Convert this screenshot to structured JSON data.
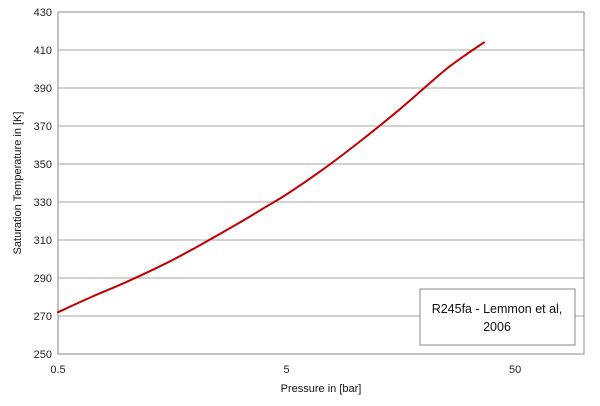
{
  "chart_data": {
    "type": "line",
    "title": "",
    "xlabel": "Pressure in [bar]",
    "ylabel": "Saturation Temperature in [K]",
    "x_scale": "log",
    "xlim": [
      0.5,
      100
    ],
    "ylim": [
      250,
      430
    ],
    "x_ticks": [
      0.5,
      5,
      50
    ],
    "x_tick_labels": [
      "0.5",
      "5",
      "50"
    ],
    "y_ticks": [
      250,
      270,
      290,
      310,
      330,
      350,
      370,
      390,
      410,
      430
    ],
    "y_tick_labels": [
      "250",
      "270",
      "290",
      "310",
      "330",
      "350",
      "370",
      "390",
      "410",
      "430"
    ],
    "grid": "horizontal",
    "legend_position": "bottom-right",
    "legend_lines": [
      "R245fa - Lemmon et al,",
      "2006"
    ],
    "series": [
      {
        "color": "#c00000",
        "x": [
          0.5,
          0.7,
          1.0,
          1.5,
          2.0,
          3.0,
          4.0,
          5.0,
          7.0,
          10.0,
          15.0,
          20.0,
          25.0,
          30.0,
          36.5
        ],
        "y": [
          272,
          280,
          288,
          298,
          306,
          318,
          327,
          334,
          346,
          360,
          377,
          390,
          400,
          407,
          414
        ]
      }
    ]
  }
}
